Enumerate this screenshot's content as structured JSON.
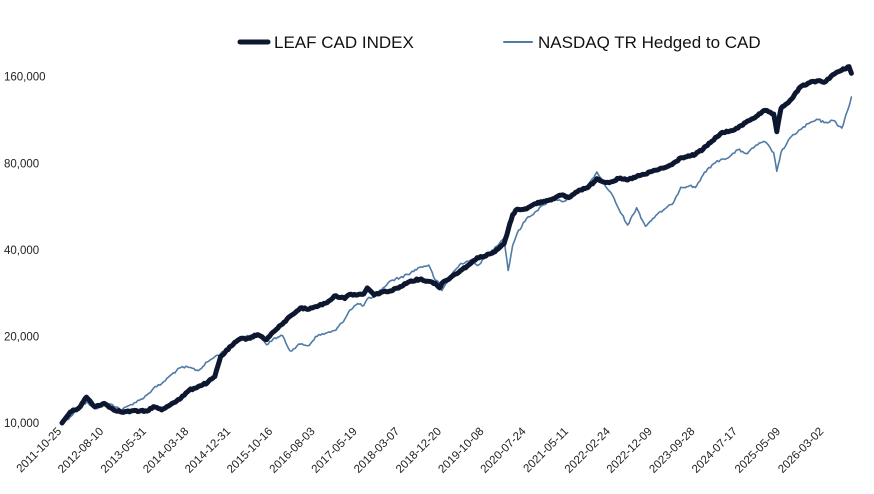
{
  "chart_data": {
    "type": "line",
    "title": "",
    "xlabel": "",
    "ylabel": "",
    "y_scale": "log",
    "ylim": [
      10000,
      180000
    ],
    "xlim": [
      "2011-10-25",
      "2026-09-30"
    ],
    "grid": false,
    "legend_position": "top-center",
    "y_ticks": [
      {
        "value": 10000,
        "label": "10,000"
      },
      {
        "value": 20000,
        "label": "20,000"
      },
      {
        "value": 40000,
        "label": "40,000"
      },
      {
        "value": 80000,
        "label": "80,000"
      },
      {
        "value": 160000,
        "label": "160,000"
      }
    ],
    "x_tick_labels": [
      "2011-10-25",
      "2012-08-10",
      "2013-05-31",
      "2014-03-18",
      "2014-12-31",
      "2015-10-16",
      "2016-08-03",
      "2017-05-19",
      "2018-03-07",
      "2018-12-20",
      "2019-10-08",
      "2020-07-24",
      "2021-05-11",
      "2022-02-24",
      "2022-12-09",
      "2023-09-28",
      "2024-07-17",
      "2025-05-09",
      "2026-03-02"
    ],
    "series": [
      {
        "name": "LEAF CAD INDEX",
        "color": "#0d1730",
        "line_width": 5,
        "points": [
          [
            "2011-10-25",
            10000
          ],
          [
            "2011-12-20",
            10900
          ],
          [
            "2012-02-20",
            11300
          ],
          [
            "2012-04-10",
            12300
          ],
          [
            "2012-06-05",
            11400
          ],
          [
            "2012-08-10",
            11700
          ],
          [
            "2012-10-05",
            11200
          ],
          [
            "2012-12-10",
            10900
          ],
          [
            "2013-02-10",
            11000
          ],
          [
            "2013-04-10",
            11000
          ],
          [
            "2013-05-31",
            11000
          ],
          [
            "2013-07-15",
            11400
          ],
          [
            "2013-09-10",
            11100
          ],
          [
            "2013-11-20",
            11700
          ],
          [
            "2014-01-20",
            12200
          ],
          [
            "2014-03-18",
            13000
          ],
          [
            "2014-05-20",
            13400
          ],
          [
            "2014-07-20",
            13800
          ],
          [
            "2014-09-10",
            14500
          ],
          [
            "2014-10-20",
            17000
          ],
          [
            "2014-12-31",
            18500
          ],
          [
            "2015-03-01",
            19600
          ],
          [
            "2015-05-01",
            19700
          ],
          [
            "2015-07-01",
            20300
          ],
          [
            "2015-09-01",
            19500
          ],
          [
            "2015-10-16",
            20700
          ],
          [
            "2015-12-20",
            22100
          ],
          [
            "2016-02-10",
            23500
          ],
          [
            "2016-04-20",
            25100
          ],
          [
            "2016-06-20",
            24900
          ],
          [
            "2016-08-03",
            25400
          ],
          [
            "2016-10-10",
            26100
          ],
          [
            "2016-12-20",
            27700
          ],
          [
            "2017-02-20",
            27100
          ],
          [
            "2017-03-25",
            28000
          ],
          [
            "2017-05-19",
            27900
          ],
          [
            "2017-06-30",
            28100
          ],
          [
            "2017-07-25",
            29500
          ],
          [
            "2017-09-10",
            27900
          ],
          [
            "2017-11-10",
            28600
          ],
          [
            "2018-01-05",
            28800
          ],
          [
            "2018-03-07",
            29800
          ],
          [
            "2018-05-20",
            31200
          ],
          [
            "2018-07-20",
            31600
          ],
          [
            "2018-09-20",
            31100
          ],
          [
            "2018-11-05",
            30600
          ],
          [
            "2018-12-05",
            29500
          ],
          [
            "2018-12-20",
            30600
          ],
          [
            "2019-03-01",
            32400
          ],
          [
            "2019-05-01",
            34000
          ],
          [
            "2019-07-01",
            35700
          ],
          [
            "2019-08-20",
            37600
          ],
          [
            "2019-10-08",
            38000
          ],
          [
            "2019-12-20",
            39400
          ],
          [
            "2020-02-20",
            42000
          ],
          [
            "2020-03-20",
            47000
          ],
          [
            "2020-04-20",
            53000
          ],
          [
            "2020-05-20",
            55400
          ],
          [
            "2020-07-24",
            55500
          ],
          [
            "2020-09-20",
            57900
          ],
          [
            "2020-11-20",
            59000
          ],
          [
            "2021-01-20",
            60200
          ],
          [
            "2021-03-20",
            62000
          ],
          [
            "2021-05-11",
            60800
          ],
          [
            "2021-07-20",
            64500
          ],
          [
            "2021-09-20",
            65900
          ],
          [
            "2021-11-20",
            70700
          ],
          [
            "2022-01-20",
            68600
          ],
          [
            "2022-02-24",
            68900
          ],
          [
            "2022-04-20",
            70800
          ],
          [
            "2022-06-20",
            70000
          ],
          [
            "2022-08-20",
            72000
          ],
          [
            "2022-10-20",
            73300
          ],
          [
            "2022-12-09",
            75200
          ],
          [
            "2023-02-20",
            77000
          ],
          [
            "2023-04-20",
            79100
          ],
          [
            "2023-06-20",
            83600
          ],
          [
            "2023-08-20",
            84700
          ],
          [
            "2023-09-28",
            86000
          ],
          [
            "2023-11-20",
            89600
          ],
          [
            "2024-01-20",
            95500
          ],
          [
            "2024-03-20",
            101600
          ],
          [
            "2024-05-20",
            103400
          ],
          [
            "2024-07-17",
            106000
          ],
          [
            "2024-09-20",
            112100
          ],
          [
            "2024-11-20",
            116400
          ],
          [
            "2025-01-20",
            122200
          ],
          [
            "2025-03-20",
            118600
          ],
          [
            "2025-04-10",
            103000
          ],
          [
            "2025-05-09",
            124000
          ],
          [
            "2025-07-20",
            133700
          ],
          [
            "2025-09-20",
            147600
          ],
          [
            "2025-11-20",
            152300
          ],
          [
            "2026-01-20",
            155000
          ],
          [
            "2026-03-02",
            153000
          ],
          [
            "2026-05-01",
            162600
          ],
          [
            "2026-07-01",
            168500
          ],
          [
            "2026-08-20",
            173400
          ],
          [
            "2026-09-05",
            164400
          ]
        ]
      },
      {
        "name": "NASDAQ TR Hedged to CAD",
        "color": "#4f7ba6",
        "line_width": 1.6,
        "points": [
          [
            "2011-10-25",
            10000
          ],
          [
            "2011-12-20",
            10500
          ],
          [
            "2012-02-20",
            11300
          ],
          [
            "2012-04-10",
            11800
          ],
          [
            "2012-06-05",
            11200
          ],
          [
            "2012-08-10",
            11600
          ],
          [
            "2012-10-05",
            11600
          ],
          [
            "2012-12-10",
            11100
          ],
          [
            "2013-02-10",
            11600
          ],
          [
            "2013-04-10",
            12000
          ],
          [
            "2013-05-31",
            12500
          ],
          [
            "2013-07-15",
            13200
          ],
          [
            "2013-09-10",
            13700
          ],
          [
            "2013-11-20",
            14800
          ],
          [
            "2014-01-20",
            15600
          ],
          [
            "2014-03-18",
            15600
          ],
          [
            "2014-05-20",
            15200
          ],
          [
            "2014-07-20",
            16300
          ],
          [
            "2014-09-10",
            17000
          ],
          [
            "2014-10-20",
            17400
          ],
          [
            "2014-12-31",
            18700
          ],
          [
            "2015-03-01",
            19700
          ],
          [
            "2015-05-01",
            20100
          ],
          [
            "2015-07-01",
            20500
          ],
          [
            "2015-09-01",
            18700
          ],
          [
            "2015-10-16",
            19600
          ],
          [
            "2015-12-20",
            20100
          ],
          [
            "2016-02-10",
            17800
          ],
          [
            "2016-04-20",
            18800
          ],
          [
            "2016-06-20",
            18600
          ],
          [
            "2016-08-03",
            20000
          ],
          [
            "2016-10-10",
            20500
          ],
          [
            "2016-12-20",
            21000
          ],
          [
            "2017-02-20",
            23000
          ],
          [
            "2017-03-25",
            24700
          ],
          [
            "2017-05-19",
            26000
          ],
          [
            "2017-06-30",
            25600
          ],
          [
            "2017-07-25",
            27000
          ],
          [
            "2017-09-10",
            27400
          ],
          [
            "2017-11-10",
            29500
          ],
          [
            "2018-01-05",
            31300
          ],
          [
            "2018-03-07",
            32000
          ],
          [
            "2018-05-20",
            33300
          ],
          [
            "2018-07-20",
            34800
          ],
          [
            "2018-09-20",
            35400
          ],
          [
            "2018-11-05",
            31300
          ],
          [
            "2018-12-05",
            30500
          ],
          [
            "2018-12-20",
            28900
          ],
          [
            "2019-03-01",
            33100
          ],
          [
            "2019-05-01",
            35900
          ],
          [
            "2019-07-01",
            36800
          ],
          [
            "2019-08-20",
            35300
          ],
          [
            "2019-10-08",
            37300
          ],
          [
            "2019-12-20",
            40800
          ],
          [
            "2020-02-20",
            44000
          ],
          [
            "2020-03-20",
            33900
          ],
          [
            "2020-04-20",
            41500
          ],
          [
            "2020-05-20",
            45600
          ],
          [
            "2020-07-24",
            51400
          ],
          [
            "2020-09-20",
            54100
          ],
          [
            "2020-11-20",
            57400
          ],
          [
            "2021-01-20",
            60700
          ],
          [
            "2021-03-20",
            59000
          ],
          [
            "2021-05-11",
            59900
          ],
          [
            "2021-07-20",
            64800
          ],
          [
            "2021-09-20",
            66600
          ],
          [
            "2021-11-20",
            74600
          ],
          [
            "2022-01-20",
            66300
          ],
          [
            "2022-02-24",
            63300
          ],
          [
            "2022-04-20",
            55400
          ],
          [
            "2022-06-20",
            48800
          ],
          [
            "2022-08-20",
            56000
          ],
          [
            "2022-10-20",
            48300
          ],
          [
            "2022-12-09",
            51400
          ],
          [
            "2023-02-20",
            55100
          ],
          [
            "2023-04-20",
            57500
          ],
          [
            "2023-06-20",
            66000
          ],
          [
            "2023-08-20",
            66800
          ],
          [
            "2023-09-28",
            65900
          ],
          [
            "2023-11-20",
            72900
          ],
          [
            "2024-01-20",
            78900
          ],
          [
            "2024-03-20",
            82400
          ],
          [
            "2024-05-20",
            84200
          ],
          [
            "2024-07-17",
            89200
          ],
          [
            "2024-09-20",
            86400
          ],
          [
            "2024-11-20",
            92700
          ],
          [
            "2025-01-20",
            95000
          ],
          [
            "2025-03-20",
            87000
          ],
          [
            "2025-04-10",
            75000
          ],
          [
            "2025-05-09",
            87200
          ],
          [
            "2025-07-20",
            99200
          ],
          [
            "2025-09-20",
            104800
          ],
          [
            "2025-11-20",
            110300
          ],
          [
            "2026-01-20",
            113500
          ],
          [
            "2026-03-02",
            110700
          ],
          [
            "2026-05-01",
            112700
          ],
          [
            "2026-07-01",
            106000
          ],
          [
            "2026-08-20",
            126000
          ],
          [
            "2026-09-05",
            136000
          ]
        ]
      }
    ]
  }
}
